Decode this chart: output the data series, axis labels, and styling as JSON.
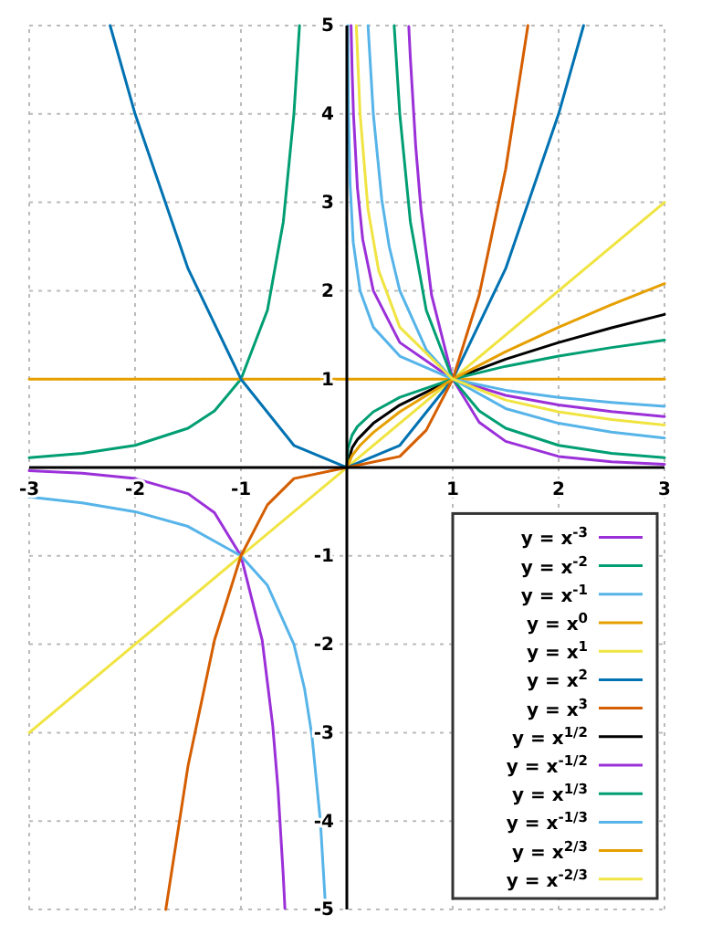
{
  "chart_data": {
    "type": "line",
    "xlim": [
      -3,
      3
    ],
    "ylim": [
      -5,
      5
    ],
    "xticks": [
      -3,
      -2,
      -1,
      1,
      2,
      3
    ],
    "yticks": [
      -5,
      -4,
      -3,
      -2,
      -1,
      1,
      2,
      3,
      4,
      5
    ],
    "grid": true,
    "legend": "bottom right",
    "series": [
      {
        "name": "y = x$^{-3}$",
        "color": "#9b30d9",
        "x": [
          -3,
          -2.5,
          -2,
          -1.5,
          -1.25,
          -1,
          -0.8,
          -0.7,
          -0.65,
          -0.6,
          -0.585,
          0,
          0.585,
          0.6,
          0.65,
          0.7,
          0.8,
          1,
          1.25,
          1.5,
          2,
          2.5,
          3
        ],
        "values": [
          -0.037,
          -0.064,
          -0.125,
          -0.296,
          -0.512,
          -1,
          -1.95,
          -2.92,
          -3.64,
          -4.63,
          -4.99,
          null,
          4.99,
          4.63,
          3.64,
          2.92,
          1.95,
          1,
          0.512,
          0.296,
          0.125,
          0.064,
          0.037
        ]
      },
      {
        "name": "y = x$^{-2}$",
        "color": "#009e73",
        "x": [
          -3,
          -2.5,
          -2,
          -1.5,
          -1.25,
          -1,
          -0.75,
          -0.6,
          -0.5,
          -0.447,
          0,
          0.447,
          0.5,
          0.6,
          0.75,
          1,
          1.25,
          1.5,
          2,
          2.5,
          3
        ],
        "values": [
          0.111,
          0.16,
          0.25,
          0.444,
          0.64,
          1,
          1.78,
          2.78,
          4,
          5,
          null,
          5,
          4,
          2.78,
          1.78,
          1,
          0.64,
          0.444,
          0.25,
          0.16,
          0.111
        ]
      },
      {
        "name": "y = x$^{-1}$",
        "color": "#56b4e9",
        "x": [
          -3,
          -2.5,
          -2,
          -1.5,
          -1,
          -0.75,
          -0.5,
          -0.4,
          -0.33,
          -0.25,
          -0.2,
          0,
          0.2,
          0.25,
          0.33,
          0.4,
          0.5,
          0.75,
          1,
          1.5,
          2,
          2.5,
          3
        ],
        "values": [
          -0.333,
          -0.4,
          -0.5,
          -0.667,
          -1,
          -1.333,
          -2,
          -2.5,
          -3.03,
          -4,
          -5,
          null,
          5,
          4,
          3.03,
          2.5,
          2,
          1.333,
          1,
          0.667,
          0.5,
          0.4,
          0.333
        ]
      },
      {
        "name": "y = x$^{0}$",
        "color": "#e69f00",
        "x": [
          -3,
          3
        ],
        "values": [
          1,
          1
        ]
      },
      {
        "name": "y = x$^{1}$",
        "color": "#f0e442",
        "x": [
          -3,
          3
        ],
        "values": [
          -3,
          3
        ]
      },
      {
        "name": "y = x$^{2}$",
        "color": "#0072b2",
        "x": [
          -2.236,
          -2,
          -1.5,
          -1,
          -0.5,
          0,
          0.5,
          1,
          1.5,
          2,
          2.236
        ],
        "values": [
          5,
          4,
          2.25,
          1,
          0.25,
          0,
          0.25,
          1,
          2.25,
          4,
          5
        ]
      },
      {
        "name": "y = x$^{3}$",
        "color": "#d55e00",
        "x": [
          -1.71,
          -1.5,
          -1.25,
          -1,
          -0.75,
          -0.5,
          0,
          0.5,
          0.75,
          1,
          1.25,
          1.5,
          1.71
        ],
        "values": [
          -5,
          -3.375,
          -1.953,
          -1,
          -0.422,
          -0.125,
          0,
          0.125,
          0.422,
          1,
          1.953,
          3.375,
          5
        ]
      },
      {
        "name": "y = x$^{1/2}$",
        "color": "#000000",
        "x": [
          0,
          0.05,
          0.1,
          0.25,
          0.5,
          1,
          1.5,
          2,
          2.5,
          3
        ],
        "values": [
          0,
          0.224,
          0.316,
          0.5,
          0.707,
          1,
          1.225,
          1.414,
          1.581,
          1.732
        ]
      },
      {
        "name": "y = x$^{-1/2}$",
        "color": "#9b30d9",
        "x": [
          0.04,
          0.05,
          0.0625,
          0.1,
          0.15,
          0.25,
          0.5,
          1,
          1.5,
          2,
          2.5,
          3
        ],
        "values": [
          5,
          4.47,
          4,
          3.16,
          2.58,
          2,
          1.414,
          1,
          0.816,
          0.707,
          0.632,
          0.577
        ]
      },
      {
        "name": "y = x$^{1/3}$",
        "color": "#009e73",
        "x": [
          0,
          0.01,
          0.05,
          0.1,
          0.25,
          0.5,
          1,
          1.5,
          2,
          2.5,
          3
        ],
        "values": [
          0,
          0.215,
          0.368,
          0.464,
          0.63,
          0.794,
          1,
          1.145,
          1.26,
          1.357,
          1.442
        ]
      },
      {
        "name": "y = x$^{-1/3}$",
        "color": "#56b4e9",
        "x": [
          0.008,
          0.015,
          0.03,
          0.06,
          0.125,
          0.25,
          0.5,
          1,
          1.5,
          2,
          2.5,
          3
        ],
        "values": [
          5,
          4.05,
          3.22,
          2.55,
          2,
          1.587,
          1.26,
          1,
          0.874,
          0.794,
          0.737,
          0.693
        ]
      },
      {
        "name": "y = x$^{2/3}$",
        "color": "#e69f00",
        "x": [
          0,
          0.05,
          0.125,
          0.25,
          0.5,
          1,
          1.5,
          2,
          2.5,
          3
        ],
        "values": [
          0,
          0.136,
          0.25,
          0.397,
          0.63,
          1,
          1.31,
          1.587,
          1.842,
          2.08
        ]
      },
      {
        "name": "y = x$^{-2/3}$",
        "color": "#f0e442",
        "x": [
          0.0894,
          0.125,
          0.2,
          0.3,
          0.5,
          1,
          1.5,
          2,
          2.5,
          3
        ],
        "values": [
          5,
          4,
          2.92,
          2.23,
          1.587,
          1,
          0.763,
          0.63,
          0.543,
          0.481
        ]
      }
    ]
  }
}
